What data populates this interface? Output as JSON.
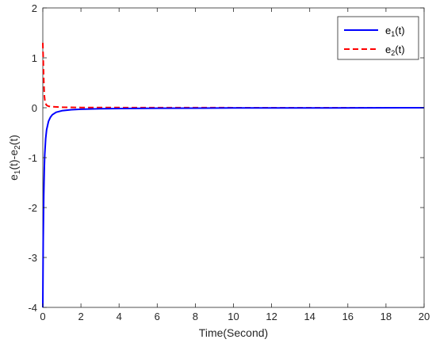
{
  "chart_data": {
    "type": "line",
    "xlabel": "Time(Second)",
    "ylabel_parts": [
      "e",
      "1",
      "(t)-e",
      "2",
      "(t)"
    ],
    "xlim": [
      0,
      20
    ],
    "ylim": [
      -4,
      2
    ],
    "xticks": [
      0,
      2,
      4,
      6,
      8,
      10,
      12,
      14,
      16,
      18,
      20
    ],
    "yticks": [
      -4,
      -3,
      -2,
      -1,
      0,
      1,
      2
    ],
    "grid": false,
    "legend_position": "top-right",
    "series": [
      {
        "name_parts": [
          "e",
          "1",
          "(t)"
        ],
        "color": "#0000ff",
        "style": "solid",
        "x": [
          0,
          0.02,
          0.05,
          0.08,
          0.1,
          0.15,
          0.2,
          0.3,
          0.4,
          0.5,
          0.7,
          1.0,
          1.5,
          2.0,
          3.0,
          4.0,
          6.0,
          10.0,
          15.0,
          20.0
        ],
        "y": [
          -4.0,
          -2.7,
          -1.75,
          -1.2,
          -0.95,
          -0.62,
          -0.44,
          -0.27,
          -0.19,
          -0.14,
          -0.09,
          -0.06,
          -0.04,
          -0.03,
          -0.02,
          -0.015,
          -0.01,
          -0.005,
          -0.003,
          0
        ]
      },
      {
        "name_parts": [
          "e",
          "2",
          "(t)"
        ],
        "color": "#ff0000",
        "style": "dashed",
        "x": [
          0,
          0.02,
          0.05,
          0.08,
          0.12,
          0.2,
          0.3,
          0.5,
          1.0,
          2.0,
          4.0,
          10.0,
          20.0
        ],
        "y": [
          1.3,
          1.0,
          0.55,
          0.25,
          0.1,
          0.05,
          0.03,
          0.02,
          0.01,
          0.005,
          0.003,
          0.001,
          0
        ]
      }
    ]
  }
}
